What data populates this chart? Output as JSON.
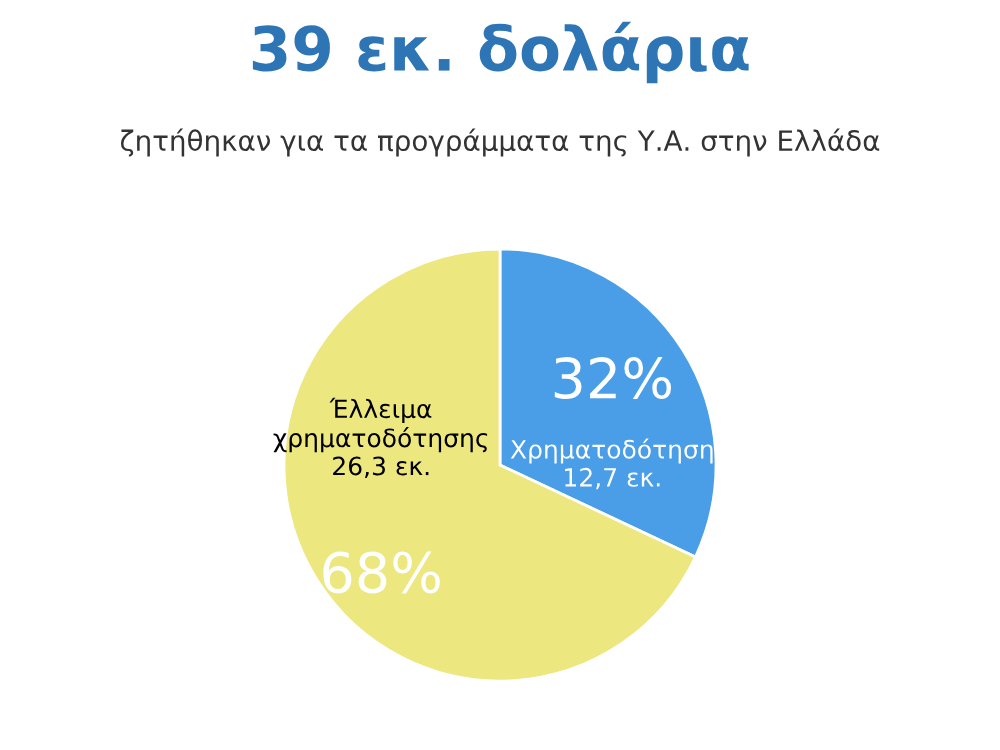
{
  "chart_data": {
    "type": "pie",
    "title": "39 εκ. δολάρια",
    "subtitle": "ζητήθηκαν για τα προγράμματα της Υ.Α. στην Ελλάδα",
    "categories": [
      "Χρηματοδότηση",
      "Έλλειμα χρηματοδότησης"
    ],
    "values": [
      32,
      68
    ],
    "colors": [
      "#4a9ee8",
      "#ece77f"
    ],
    "value_labels": [
      "32%",
      "68%"
    ],
    "annotations": [
      "12,7 εκ.",
      "26,3 εκ."
    ]
  }
}
